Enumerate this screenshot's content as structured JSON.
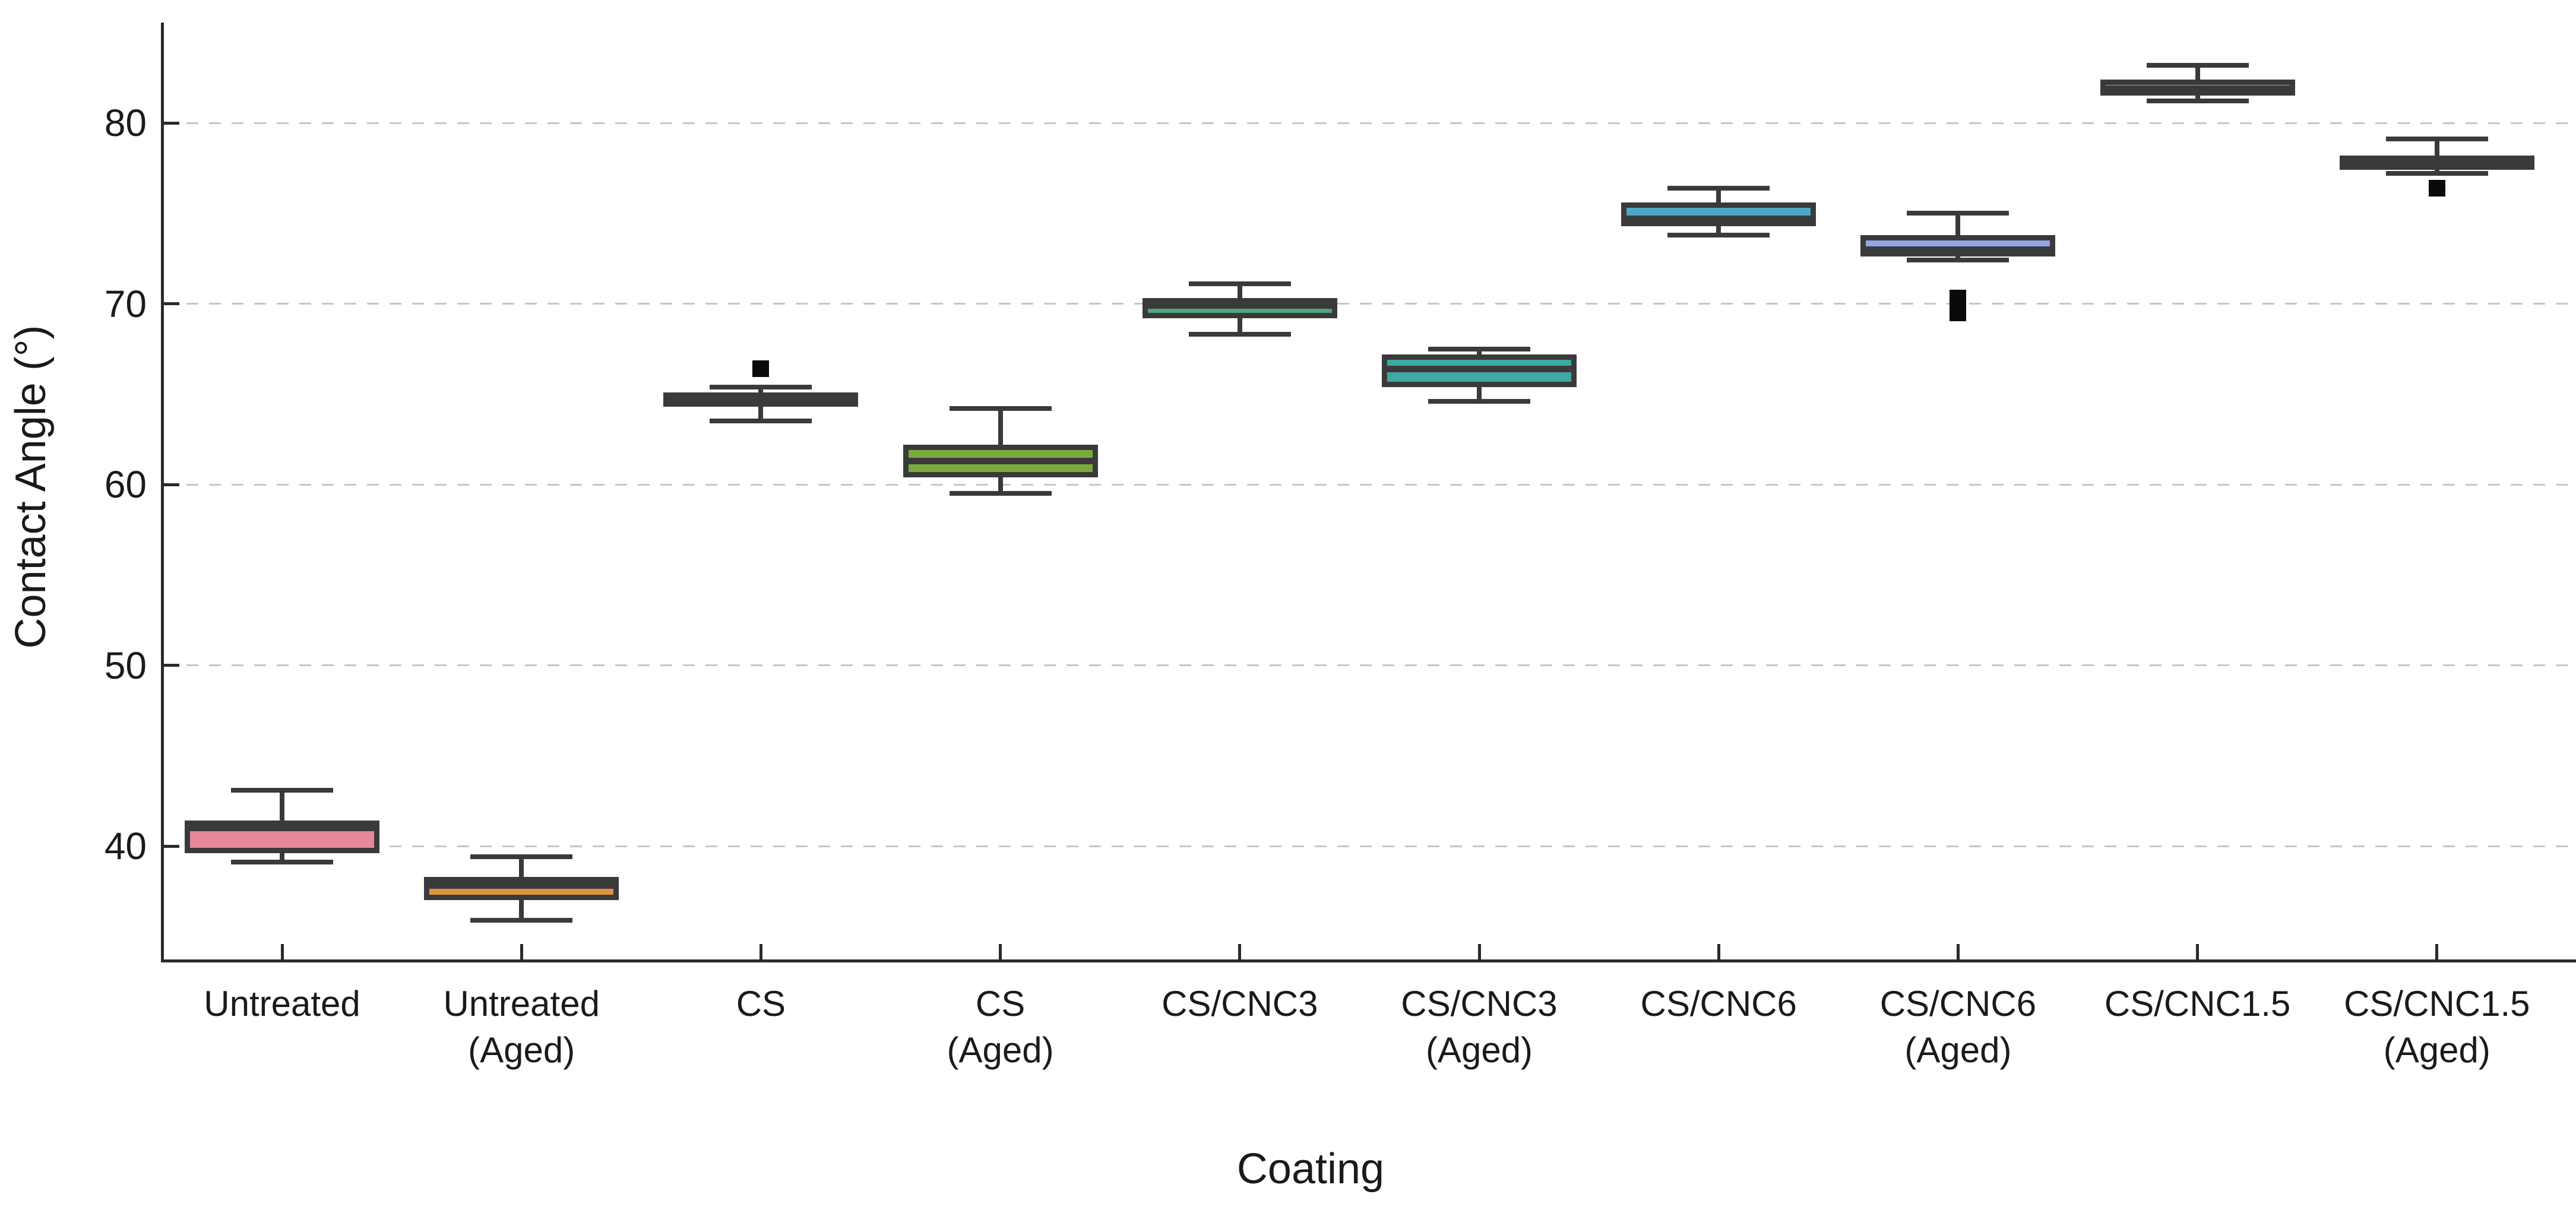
{
  "figure": {
    "background": "#ffffff",
    "kind": "box plot"
  },
  "chart_data": {
    "type": "boxplot",
    "title": "",
    "xlabel": "Coating",
    "ylabel": "Contact Angle (°)",
    "ylim": [
      34,
      86
    ],
    "yticks": [
      40,
      50,
      60,
      70,
      80
    ],
    "grid": "horizontal dashed gridlines at each y tick",
    "legend_position": "none",
    "tick_direction": "in",
    "colors": {
      "box_border": "#3a3a3a",
      "whisker": "#3a3a3a",
      "median": "#3a3a3a",
      "outlier": "#0a0a0a",
      "gridline": "#c6c6c6",
      "axis": "#2a2a2a",
      "text": "#1a1a1a",
      "background": "#ffffff"
    },
    "categories": [
      "Untreated",
      "Untreated (Aged)",
      "CS",
      "CS (Aged)",
      "CS/CNC3",
      "CS/CNC3 (Aged)",
      "CS/CNC6",
      "CS/CNC6 (Aged)",
      "CS/CNC1.5",
      "CS/CNC1.5 (Aged)"
    ],
    "series": [
      {
        "label": "Untreated",
        "label_lines": [
          "Untreated"
        ],
        "color": "#e8879c",
        "whisker_low": 39.1,
        "q1": 39.6,
        "median": 41.0,
        "q3": 41.4,
        "whisker_high": 43.1,
        "outliers": []
      },
      {
        "label": "Untreated (Aged)",
        "label_lines": [
          "Untreated",
          "(Aged)"
        ],
        "color": "#de9440",
        "whisker_low": 35.9,
        "q1": 37.0,
        "median": 37.8,
        "q3": 38.3,
        "whisker_high": 39.4,
        "outliers": []
      },
      {
        "label": "CS",
        "label_lines": [
          "CS"
        ],
        "color": "#8e8742",
        "whisker_low": 63.5,
        "q1": 64.3,
        "median": 64.7,
        "q3": 65.1,
        "whisker_high": 65.4,
        "outliers": [
          66.4
        ]
      },
      {
        "label": "CS (Aged)",
        "label_lines": [
          "CS",
          "(Aged)"
        ],
        "color": "#7aaa3e",
        "whisker_low": 59.5,
        "q1": 60.4,
        "median": 61.3,
        "q3": 62.2,
        "whisker_high": 64.2,
        "outliers": []
      },
      {
        "label": "CS/CNC3",
        "label_lines": [
          "CS/CNC3"
        ],
        "color": "#4fa57f",
        "whisker_low": 68.3,
        "q1": 69.2,
        "median": 69.9,
        "q3": 70.3,
        "whisker_high": 71.1,
        "outliers": []
      },
      {
        "label": "CS/CNC3 (Aged)",
        "label_lines": [
          "CS/CNC3",
          "(Aged)"
        ],
        "color": "#3fa9a1",
        "whisker_low": 64.6,
        "q1": 65.4,
        "median": 66.4,
        "q3": 67.2,
        "whisker_high": 67.5,
        "outliers": []
      },
      {
        "label": "CS/CNC6",
        "label_lines": [
          "CS/CNC6"
        ],
        "color": "#4da7c7",
        "whisker_low": 73.8,
        "q1": 74.3,
        "median": 74.7,
        "q3": 75.6,
        "whisker_high": 76.4,
        "outliers": []
      },
      {
        "label": "CS/CNC6 (Aged)",
        "label_lines": [
          "CS/CNC6",
          "(Aged)"
        ],
        "color": "#8fa6e3",
        "whisker_low": 72.4,
        "q1": 72.6,
        "median": 73.0,
        "q3": 73.8,
        "whisker_high": 75.0,
        "outliers": [
          70.3,
          69.5
        ]
      },
      {
        "label": "CS/CNC1.5",
        "label_lines": [
          "CS/CNC1.5"
        ],
        "color": "#b48cd8",
        "whisker_low": 81.2,
        "q1": 81.5,
        "median": 81.9,
        "q3": 82.4,
        "whisker_high": 83.2,
        "outliers": []
      },
      {
        "label": "CS/CNC1.5 (Aged)",
        "label_lines": [
          "CS/CNC1.5",
          "(Aged)"
        ],
        "color": "#a4739e",
        "whisker_low": 77.2,
        "q1": 77.4,
        "median": 77.8,
        "q3": 78.2,
        "whisker_high": 79.1,
        "outliers": [
          76.4
        ]
      }
    ]
  }
}
